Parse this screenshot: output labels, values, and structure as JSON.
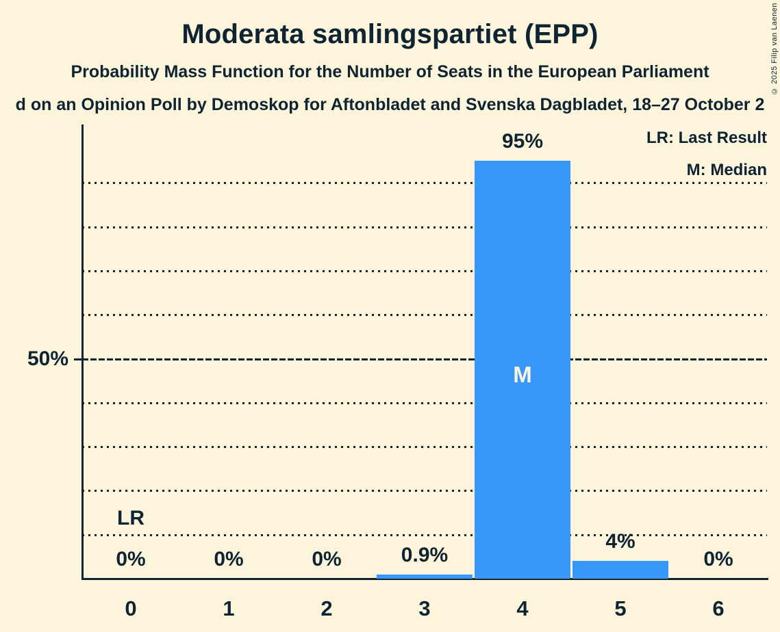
{
  "page": {
    "background_color": "#FCF5DC",
    "text_color": "#0E2433"
  },
  "header": {
    "title": "Moderata samlingspartiet (EPP)",
    "subtitle": "Probability Mass Function for the Number of Seats in the European Parliament",
    "source_line": "d on an Opinion Poll by Demoskop for Aftonbladet and Svenska Dagbladet, 18–27 October 2"
  },
  "legend": {
    "lr": "LR: Last Result",
    "m": "M: Median"
  },
  "copyright": "© 2025 Filip van Laenen",
  "chart_data": {
    "type": "bar",
    "title": "Moderata samlingspartiet (EPP)",
    "subtitle": "Probability Mass Function for the Number of Seats in the European Parliament",
    "categories": [
      "0",
      "1",
      "2",
      "3",
      "4",
      "5",
      "6"
    ],
    "values": [
      0,
      0,
      0,
      0.9,
      95,
      4,
      0
    ],
    "value_labels": [
      "0%",
      "0%",
      "0%",
      "0.9%",
      "95%",
      "4%",
      "0%"
    ],
    "ylim": [
      0,
      100
    ],
    "ytick": {
      "value": 50,
      "label": "50%"
    },
    "gridlines": {
      "dotted_every": 10,
      "solid_at": 50,
      "grid_on": true
    },
    "legend_position": "top-right",
    "annotations": {
      "last_result": {
        "category": "0",
        "label": "LR"
      },
      "median": {
        "category": "4",
        "label": "M"
      }
    },
    "bar_color": "#3898FA"
  }
}
